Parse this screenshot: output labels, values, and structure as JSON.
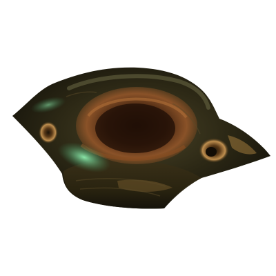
{
  "scene": {
    "background_color": "#ffffff",
    "object": "bowl-shaped-organic-item",
    "palette": {
      "shell_dark": "#1c1a0f",
      "shell_mid": "#3b3620",
      "rim_light": "#6b6a45",
      "bowl_inner": "#4a2812",
      "bowl_glow": "#9a5a2a",
      "highlight_green": "#7fd8a0",
      "knot_tan": "#b08a4a"
    }
  }
}
